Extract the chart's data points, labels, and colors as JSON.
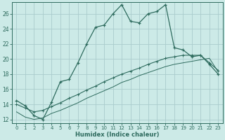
{
  "xlabel": "Humidex (Indice chaleur)",
  "bg_color": "#cceae7",
  "grid_color": "#aacccc",
  "line_color": "#2e6b5e",
  "xlim": [
    -0.5,
    23.5
  ],
  "ylim": [
    11.5,
    27.5
  ],
  "yticks": [
    12,
    14,
    16,
    18,
    20,
    22,
    24,
    26
  ],
  "xticks": [
    0,
    1,
    2,
    3,
    4,
    5,
    6,
    7,
    8,
    9,
    10,
    11,
    12,
    13,
    14,
    15,
    16,
    17,
    18,
    19,
    20,
    21,
    22,
    23
  ],
  "series1_x": [
    0,
    1,
    2,
    3,
    4,
    5,
    6,
    7,
    8,
    9,
    10,
    11,
    12,
    13,
    14,
    15,
    16,
    17,
    18,
    19,
    20,
    21,
    22,
    23
  ],
  "series1_y": [
    14.5,
    13.8,
    12.5,
    12.0,
    14.3,
    17.0,
    17.3,
    19.5,
    22.0,
    24.2,
    24.5,
    26.0,
    27.2,
    25.0,
    24.8,
    26.0,
    26.3,
    27.2,
    21.5,
    21.2,
    20.3,
    20.5,
    19.3,
    18.0
  ],
  "series2_x": [
    0,
    1,
    2,
    3,
    4,
    5,
    6,
    7,
    8,
    9,
    10,
    11,
    12,
    13,
    14,
    15,
    16,
    17,
    18,
    19,
    20,
    21,
    22,
    23
  ],
  "series2_y": [
    14.0,
    13.5,
    13.0,
    13.2,
    13.7,
    14.2,
    14.8,
    15.3,
    15.9,
    16.4,
    17.0,
    17.5,
    18.0,
    18.4,
    18.8,
    19.3,
    19.7,
    20.1,
    20.3,
    20.5,
    20.5,
    20.5,
    19.5,
    18.5
  ],
  "series3_x": [
    0,
    1,
    2,
    3,
    4,
    5,
    6,
    7,
    8,
    9,
    10,
    11,
    12,
    13,
    14,
    15,
    16,
    17,
    18,
    19,
    20,
    21,
    22,
    23
  ],
  "series3_y": [
    13.0,
    12.3,
    12.0,
    12.2,
    12.8,
    13.2,
    13.7,
    14.2,
    14.8,
    15.3,
    15.8,
    16.3,
    16.9,
    17.3,
    17.8,
    18.2,
    18.6,
    19.0,
    19.3,
    19.5,
    19.7,
    19.9,
    20.1,
    18.3
  ]
}
